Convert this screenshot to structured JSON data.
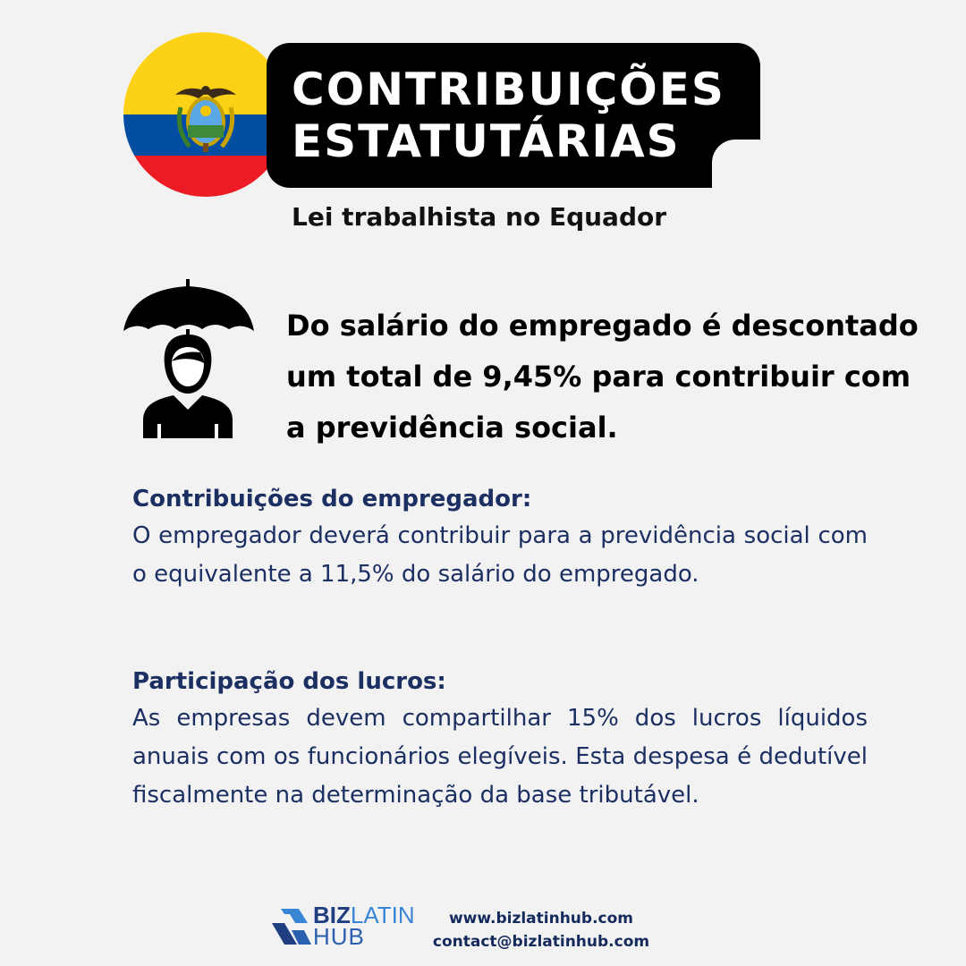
{
  "header": {
    "title_line_1": "CONTRIBUIÇÕES",
    "title_line_2": "ESTATUTÁRIAS",
    "subtitle": "Lei trabalhista no Equador"
  },
  "flag": {
    "icon": "ecuador-flag-icon",
    "colors": {
      "yellow": "#fcd116",
      "blue": "#034ea2",
      "red": "#ed1c24"
    }
  },
  "lead": {
    "icon": "umbrella-person-icon",
    "text": "Do salário do empregado é descontado um total de 9,45% para contribuir com a previdência social."
  },
  "sections": [
    {
      "heading": "Contribuições do empregador:",
      "body": "O empregador deverá contribuir para a previdência social com o equivalente a 11,5% do salário do empregado."
    },
    {
      "heading": "Participação dos lucros:",
      "body": "As empresas devem compartilhar 15% dos lucros líquidos anuais com os funcionários elegíveis. Esta despesa é dedutível fiscalmente na determinação da base tributável."
    }
  ],
  "footer": {
    "brand_biz": "BIZ",
    "brand_latin": "LATIN",
    "brand_hub": "HUB",
    "website": "www.bizlatinhub.com",
    "email": "contact@bizlatinhub.com",
    "text_color": "#1c2f63"
  }
}
